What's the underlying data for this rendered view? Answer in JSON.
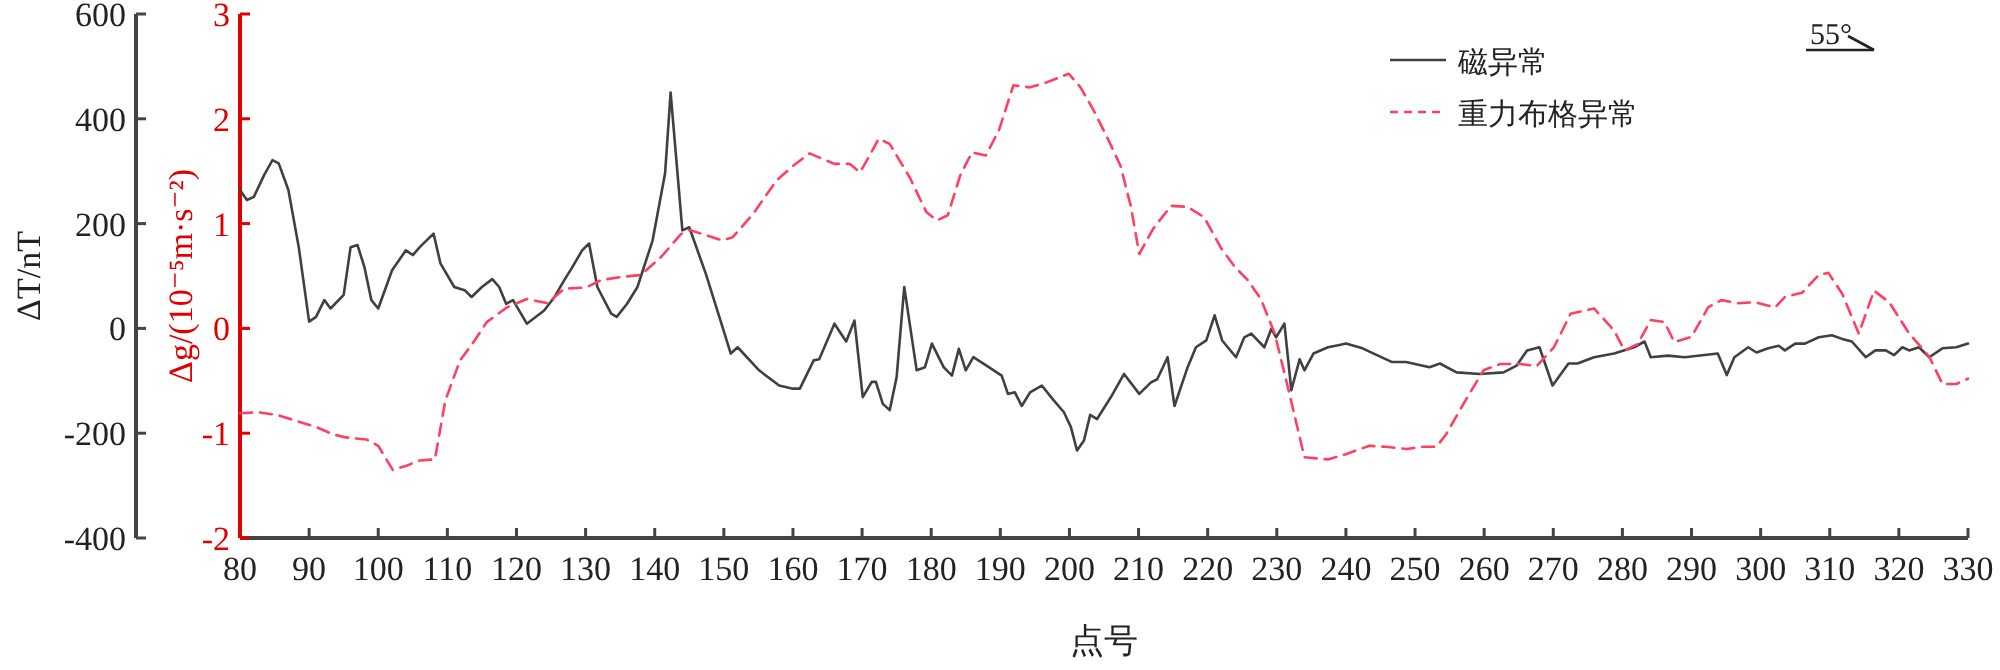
{
  "chart_data": {
    "type": "line",
    "xlabel": "点号",
    "ylabel": "ΔT/nT",
    "y2label": "Δg/(10⁻⁵m·s⁻²)",
    "xlim": [
      80,
      330
    ],
    "xticks": [
      80,
      90,
      100,
      110,
      120,
      130,
      140,
      150,
      160,
      170,
      180,
      190,
      200,
      210,
      220,
      230,
      240,
      250,
      260,
      270,
      280,
      290,
      300,
      310,
      320,
      330
    ],
    "ylim": [
      -400,
      600
    ],
    "yticks": [
      -400,
      -200,
      0,
      200,
      400,
      600
    ],
    "y2lim": [
      -2,
      3
    ],
    "y2ticks": [
      -2,
      -1,
      0,
      1,
      2,
      3
    ],
    "legend": "top right",
    "grid": false,
    "annotations": [
      "55°"
    ],
    "series": [
      {
        "name": "磁异常",
        "color": "#404040",
        "line_style": "solid",
        "x": [
          80,
          81,
          82,
          83.5,
          84.7,
          85.6,
          87,
          88.5,
          90,
          91,
          92.2,
          93.1,
          95,
          96,
          97,
          98,
          99,
          100,
          102,
          104,
          105,
          106,
          108,
          109,
          111,
          112.5,
          113.5,
          115,
          116.5,
          117.5,
          118.5,
          119.5,
          121.5,
          124,
          125.5,
          127,
          128,
          129.5,
          130.5,
          131.7,
          133.7,
          134.5,
          136,
          137.5,
          139.7,
          141.5,
          142.3,
          144,
          145,
          147.4,
          149.8,
          151,
          152,
          155.1,
          158,
          160,
          161,
          163,
          163.8,
          166,
          167.7,
          168.9,
          170.1,
          171.4,
          172,
          173,
          174,
          175,
          176.1,
          177.9,
          179.1,
          180.1,
          181.8,
          183,
          184,
          185,
          186.1,
          188,
          190.2,
          191.1,
          192.1,
          193.1,
          194.3,
          196,
          197.7,
          199.2,
          200.2,
          201.1,
          202.1,
          203,
          204,
          206,
          207.9,
          210.1,
          211.8,
          212.7,
          214.2,
          215.2,
          217.1,
          218.3,
          219.8,
          221,
          222.1,
          224.1,
          225.3,
          226.3,
          228.2,
          229.2,
          229.9,
          231.1,
          232.1,
          233.3,
          234,
          235.3,
          237.4,
          238.9,
          240,
          242.4,
          246.6,
          248.7,
          252.1,
          253.6,
          256,
          259.4,
          262.8,
          264.7,
          266.2,
          268,
          269.9,
          272.2,
          273.5,
          275.9,
          278.8,
          281.7,
          283.2,
          284.1,
          286.6,
          289,
          293.8,
          295.1,
          296.2,
          298.2,
          299.4,
          301.1,
          302.6,
          303.5,
          305,
          306.4,
          308.4,
          310.3,
          311.8,
          313.2,
          315.2,
          316.6,
          318.1,
          319.3,
          320.5,
          321.5,
          322.9,
          324.4,
          326.3,
          328.3,
          330
        ],
        "values": [
          264,
          245,
          251,
          293,
          321,
          315,
          264,
          155,
          13,
          22,
          54,
          38,
          64,
          155,
          159,
          117,
          54,
          38,
          111,
          149,
          140,
          155,
          181,
          124,
          79,
          73,
          60,
          79,
          94,
          79,
          47,
          54,
          9,
          34,
          60,
          94,
          115,
          149,
          162,
          79,
          28,
          22,
          47,
          79,
          168,
          296,
          450,
          187,
          193,
          104,
          3,
          -48,
          -36,
          -80,
          -109,
          -115,
          -115,
          -61,
          -59,
          9,
          -25,
          15,
          -131,
          -102,
          -102,
          -144,
          -156,
          -93,
          79,
          -80,
          -74,
          -29,
          -74,
          -90,
          -39,
          -80,
          -55,
          -71,
          -90,
          -125,
          -122,
          -148,
          -122,
          -109,
          -137,
          -160,
          -188,
          -233,
          -214,
          -165,
          -173,
          -131,
          -87,
          -125,
          -103,
          -97,
          -55,
          -148,
          -74,
          -36,
          -23,
          25,
          -23,
          -55,
          -17,
          -10,
          -36,
          -1,
          -17,
          9,
          -118,
          -59,
          -80,
          -48,
          -36,
          -32,
          -29,
          -38,
          -64,
          -64,
          -74,
          -67,
          -84,
          -87,
          -84,
          -71,
          -42,
          -36,
          -109,
          -67,
          -67,
          -55,
          -48,
          -36,
          -25,
          -55,
          -52,
          -55,
          -48,
          -89,
          -55,
          -36,
          -46,
          -38,
          -33,
          -42,
          -29,
          -29,
          -17,
          -13,
          -20,
          -25,
          -55,
          -42,
          -42,
          -51,
          -36,
          -42,
          -36,
          -55,
          -38,
          -36,
          -29
        ]
      },
      {
        "name": "重力布格异常",
        "color": "#ff4060",
        "line_style": "dashed",
        "axis": "y2",
        "x": [
          80,
          82.7,
          85.6,
          88,
          91,
          93.4,
          95.3,
          98.3,
          100,
          102.1,
          104.1,
          106,
          108.2,
          109.7,
          111.8,
          114,
          115.7,
          118.6,
          121.5,
          124.5,
          126.9,
          130.1,
          132.2,
          135.1,
          138,
          140.9,
          143.8,
          145,
          147.4,
          149.8,
          151.3,
          154.2,
          157.6,
          160,
          162.4,
          166,
          168.2,
          169.7,
          171.1,
          172.4,
          174,
          176.9,
          179.3,
          180.8,
          182.4,
          184.2,
          185.9,
          187.9,
          189.8,
          191.9,
          194.3,
          196.8,
          199.9,
          201.6,
          203.5,
          205.7,
          207.4,
          208.9,
          210.1,
          212.1,
          214.7,
          217.1,
          219.5,
          222,
          223.9,
          225.8,
          227.7,
          229.7,
          231.6,
          234,
          237.4,
          240,
          243.4,
          245.8,
          248.7,
          251.2,
          253.1,
          254.5,
          257,
          259.9,
          262.3,
          265.2,
          267.6,
          270.1,
          272.5,
          275.9,
          278.8,
          280.3,
          282.2,
          284.1,
          286.1,
          287.5,
          290,
          292.4,
          294.3,
          296.7,
          299.2,
          302.1,
          303.5,
          306,
          308.4,
          309.8,
          311.8,
          314.2,
          316.4,
          318.6,
          321.5,
          324.4,
          326.3,
          328.3,
          330
        ],
        "values": [
          -0.81,
          -0.8,
          -0.83,
          -0.88,
          -0.94,
          -1.01,
          -1.04,
          -1.06,
          -1.12,
          -1.35,
          -1.31,
          -1.26,
          -1.25,
          -0.69,
          -0.31,
          -0.11,
          0.06,
          0.2,
          0.28,
          0.24,
          0.38,
          0.39,
          0.46,
          0.49,
          0.51,
          0.68,
          0.9,
          0.94,
          0.89,
          0.84,
          0.87,
          1.09,
          1.41,
          1.55,
          1.67,
          1.57,
          1.57,
          1.49,
          1.65,
          1.81,
          1.76,
          1.44,
          1.11,
          1.03,
          1.08,
          1.46,
          1.68,
          1.65,
          1.89,
          2.32,
          2.3,
          2.35,
          2.43,
          2.3,
          2.08,
          1.79,
          1.55,
          1.16,
          0.71,
          0.95,
          1.17,
          1.16,
          1.06,
          0.76,
          0.59,
          0.46,
          0.28,
          -0.05,
          -0.56,
          -1.23,
          -1.25,
          -1.2,
          -1.12,
          -1.13,
          -1.15,
          -1.13,
          -1.13,
          -1.01,
          -0.72,
          -0.4,
          -0.34,
          -0.34,
          -0.36,
          -0.18,
          0.14,
          0.19,
          -0.02,
          -0.21,
          -0.15,
          0.08,
          0.06,
          -0.13,
          -0.08,
          0.2,
          0.27,
          0.24,
          0.25,
          0.2,
          0.3,
          0.34,
          0.51,
          0.53,
          0.33,
          -0.05,
          0.36,
          0.25,
          -0.05,
          -0.27,
          -0.53,
          -0.53,
          -0.48
        ]
      }
    ]
  }
}
